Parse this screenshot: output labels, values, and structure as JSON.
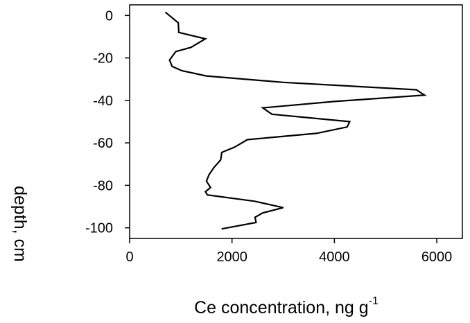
{
  "chart_data": {
    "type": "line",
    "xlabel": "Ce concentration, ng g",
    "xlabel_superscript": "-1",
    "ylabel": "depth, cm",
    "xlim": [
      0,
      6500
    ],
    "ylim": [
      -105,
      5
    ],
    "xticks": [
      0,
      2000,
      4000,
      6000
    ],
    "yticks": [
      0,
      -20,
      -40,
      -60,
      -80,
      -100
    ],
    "xtick_labels": [
      "0",
      "2000",
      "4000",
      "6000"
    ],
    "ytick_labels": [
      "0",
      "-20",
      "-40",
      "-60",
      "-80",
      "-100"
    ],
    "grid": false,
    "series": [
      {
        "color": "#000000",
        "points": [
          {
            "x": 700,
            "y": 1.5
          },
          {
            "x": 950,
            "y": -3.5
          },
          {
            "x": 960,
            "y": -8
          },
          {
            "x": 1480,
            "y": -11
          },
          {
            "x": 1200,
            "y": -15
          },
          {
            "x": 900,
            "y": -17
          },
          {
            "x": 780,
            "y": -21
          },
          {
            "x": 830,
            "y": -24
          },
          {
            "x": 1020,
            "y": -26
          },
          {
            "x": 1500,
            "y": -28.5
          },
          {
            "x": 3000,
            "y": -31.5
          },
          {
            "x": 5600,
            "y": -35
          },
          {
            "x": 5760,
            "y": -37.5
          },
          {
            "x": 4000,
            "y": -40.5
          },
          {
            "x": 2600,
            "y": -43.5
          },
          {
            "x": 2780,
            "y": -46.5
          },
          {
            "x": 4300,
            "y": -50
          },
          {
            "x": 4250,
            "y": -52.5
          },
          {
            "x": 3650,
            "y": -55.5
          },
          {
            "x": 2300,
            "y": -58.5
          },
          {
            "x": 2050,
            "y": -62
          },
          {
            "x": 1800,
            "y": -64.5
          },
          {
            "x": 1780,
            "y": -68
          },
          {
            "x": 1650,
            "y": -71.5
          },
          {
            "x": 1550,
            "y": -75
          },
          {
            "x": 1500,
            "y": -78
          },
          {
            "x": 1580,
            "y": -81
          },
          {
            "x": 1480,
            "y": -83
          },
          {
            "x": 1520,
            "y": -84.5
          },
          {
            "x": 2450,
            "y": -87.5
          },
          {
            "x": 3000,
            "y": -90.5
          },
          {
            "x": 2600,
            "y": -93
          },
          {
            "x": 2450,
            "y": -95
          },
          {
            "x": 2470,
            "y": -97.5
          },
          {
            "x": 1800,
            "y": -100.5
          }
        ]
      }
    ]
  }
}
